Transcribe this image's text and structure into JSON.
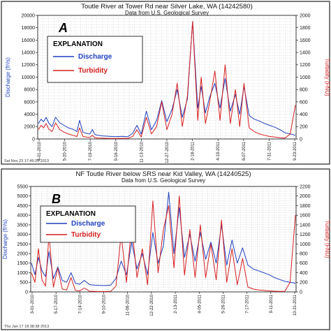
{
  "chart_data": [
    {
      "type": "line",
      "panel_label": "A",
      "title": "Toutle River at Tower Rd near Silver Lake, WA (14242580)",
      "subtitle": "Data from U.S. Geological Survey",
      "ylabel": "Discharge (ft³/s)",
      "y2label": "Turbidity (FNU)",
      "ylim": [
        0,
        20000
      ],
      "y2lim": [
        0,
        2000
      ],
      "yticks": [
        "0",
        "2000",
        "4000",
        "6000",
        "8000",
        "10000",
        "12000",
        "14000",
        "16000",
        "18000",
        "20000"
      ],
      "y2ticks": [
        "0",
        "200",
        "400",
        "600",
        "800",
        "1000",
        "1200",
        "1400",
        "1600",
        "1800",
        "2000"
      ],
      "xticks": [
        "4-01-2010",
        "5-20-2010",
        "7-19-2010",
        "9-16-2010",
        "11-13-2010",
        "12-27-2010",
        "2-18-2011",
        "4-19-2011",
        "6-07-2011",
        "7-31-2011",
        "9-23-2011"
      ],
      "footer": "Sat Nov 23 17:49:26 2013",
      "legend_title": "EXPLANATION",
      "grid": true,
      "series": [
        {
          "name": "Discharge",
          "color": "#1f3fbf",
          "axis": "left",
          "x": [
            0,
            3,
            6,
            9,
            12,
            16,
            20,
            25,
            30,
            35,
            40,
            45,
            48,
            52,
            56,
            60,
            63,
            66,
            70,
            75,
            80,
            86,
            92,
            98,
            104,
            110,
            115,
            120,
            126,
            132,
            138,
            144,
            150,
            156,
            162,
            168,
            174,
            180,
            186,
            190,
            195,
            200,
            206,
            212,
            218,
            224,
            230,
            235,
            240,
            246,
            252,
            258,
            264,
            270,
            276,
            282,
            288,
            294,
            300
          ],
          "y": [
            2500,
            3200,
            2800,
            3500,
            2600,
            2000,
            3500,
            2600,
            2200,
            1800,
            1600,
            1200,
            3000,
            1100,
            900,
            800,
            1500,
            700,
            600,
            500,
            450,
            400,
            380,
            420,
            350,
            900,
            2200,
            800,
            4500,
            1500,
            3000,
            6200,
            2800,
            4800,
            8000,
            3500,
            6500,
            19000,
            5000,
            8500,
            4200,
            6800,
            9000,
            5000,
            9800,
            4500,
            7200,
            4000,
            8500,
            3800,
            3200,
            2900,
            2500,
            2200,
            1900,
            1500,
            1000,
            800,
            600
          ]
        },
        {
          "name": "Turbidity",
          "color": "#d61f1f",
          "axis": "right",
          "x": [
            0,
            3,
            6,
            9,
            12,
            16,
            20,
            25,
            30,
            35,
            40,
            45,
            48,
            52,
            56,
            60,
            63,
            66,
            70,
            75,
            80,
            86,
            92,
            98,
            104,
            110,
            115,
            120,
            126,
            132,
            138,
            144,
            150,
            156,
            162,
            168,
            174,
            180,
            186,
            190,
            195,
            200,
            206,
            212,
            218,
            224,
            230,
            235,
            240,
            246,
            252,
            258,
            264,
            270,
            276,
            282,
            288,
            294,
            300
          ],
          "y": [
            150,
            220,
            180,
            250,
            160,
            120,
            260,
            150,
            110,
            80,
            60,
            40,
            180,
            40,
            30,
            25,
            60,
            20,
            15,
            12,
            10,
            8,
            8,
            10,
            8,
            40,
            150,
            30,
            350,
            80,
            200,
            600,
            150,
            400,
            900,
            200,
            700,
            1900,
            300,
            1000,
            250,
            600,
            1100,
            300,
            1200,
            250,
            800,
            200,
            900,
            180,
            120,
            80,
            60,
            40,
            30,
            20,
            15,
            80,
            550
          ]
        }
      ]
    },
    {
      "type": "line",
      "panel_label": "B",
      "title": "NF Toutle River below SRS near Kid Valley, WA (14240525)",
      "subtitle": "Data from U.S. Geological Survey",
      "ylabel": "Discharge (ft³/s)",
      "y2label": "Turbidity (FNU)",
      "ylim": [
        0,
        5500
      ],
      "y2lim": [
        0,
        2200
      ],
      "yticks": [
        "0",
        "500",
        "1000",
        "1500",
        "2000",
        "2500",
        "3000",
        "3500",
        "4000",
        "4500",
        "5000",
        "5500"
      ],
      "y2ticks": [
        "0",
        "200",
        "400",
        "600",
        "800",
        "1000",
        "1200",
        "1400",
        "1600",
        "1800",
        "2000",
        "2200"
      ],
      "xticks": [
        "3-01-2010",
        "5-17-2010",
        "7-14-2010",
        "9-10-2010",
        "11-06-2010",
        "12-22-2010",
        "2-13-2011",
        "4-05-2011",
        "5-26-2011",
        "7-17-2011",
        "9-11-2011",
        "10-31-2011"
      ],
      "footer": "Thu Jan 17 18:38:38 2013",
      "legend_title": "EXPLANATION",
      "grid": true,
      "series": [
        {
          "name": "Discharge",
          "color": "#1f3fbf",
          "axis": "left",
          "x": [
            0,
            4,
            8,
            12,
            16,
            20,
            25,
            30,
            35,
            40,
            45,
            50,
            55,
            60,
            66,
            72,
            78,
            84,
            90,
            96,
            102,
            108,
            114,
            120,
            126,
            132,
            138,
            144,
            150,
            156,
            162,
            168,
            174,
            180,
            186,
            192,
            198,
            204,
            210,
            216,
            222,
            228,
            234,
            240,
            246,
            252,
            258,
            264,
            270,
            276,
            282,
            288,
            294,
            300
          ],
          "y": [
            1500,
            900,
            1800,
            1100,
            800,
            2100,
            700,
            1300,
            600,
            500,
            1000,
            450,
            400,
            600,
            380,
            350,
            340,
            330,
            350,
            700,
            1600,
            900,
            2600,
            1200,
            2000,
            900,
            3100,
            1500,
            2400,
            5200,
            2000,
            4400,
            1800,
            3000,
            1600,
            3100,
            1700,
            2600,
            1500,
            3500,
            1400,
            2700,
            1500,
            2300,
            1400,
            1200,
            1100,
            1000,
            900,
            750,
            650,
            550,
            500,
            450
          ]
        },
        {
          "name": "Turbidity",
          "color": "#d61f1f",
          "axis": "right",
          "x": [
            0,
            4,
            8,
            12,
            16,
            20,
            25,
            30,
            35,
            40,
            45,
            50,
            55,
            60,
            66,
            72,
            78,
            84,
            90,
            96,
            102,
            108,
            114,
            120,
            126,
            132,
            138,
            144,
            150,
            156,
            162,
            168,
            174,
            180,
            186,
            192,
            198,
            204,
            210,
            216,
            222,
            228,
            234,
            240,
            246,
            252,
            258,
            264,
            270,
            276,
            282,
            288,
            294,
            300
          ],
          "y": [
            400,
            200,
            900,
            250,
            120,
            1200,
            100,
            500,
            60,
            40,
            300,
            30,
            20,
            80,
            15,
            10,
            8,
            8,
            10,
            120,
            1200,
            200,
            1400,
            300,
            900,
            150,
            1900,
            400,
            1300,
            1800,
            500,
            2000,
            350,
            1300,
            300,
            1400,
            300,
            1000,
            250,
            1500,
            200,
            900,
            150,
            700,
            100,
            60,
            40,
            30,
            20,
            15,
            10,
            10,
            200,
            1600
          ]
        }
      ]
    }
  ]
}
